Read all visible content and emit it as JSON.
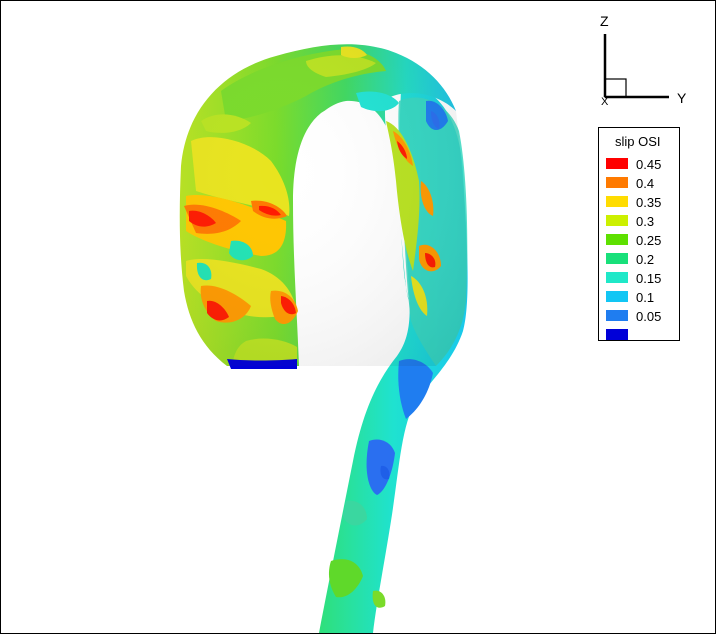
{
  "axes": {
    "z_label": "Z",
    "y_label": "Y",
    "x_label": "X"
  },
  "legend": {
    "title": "slip OSI",
    "items": [
      {
        "value": "0.45",
        "color": "#ff0000"
      },
      {
        "value": "0.4",
        "color": "#ff7a00"
      },
      {
        "value": "0.35",
        "color": "#ffdc00"
      },
      {
        "value": "0.3",
        "color": "#ccf000"
      },
      {
        "value": "0.25",
        "color": "#5ee000"
      },
      {
        "value": "0.2",
        "color": "#18e07a"
      },
      {
        "value": "0.15",
        "color": "#1fe8c8"
      },
      {
        "value": "0.1",
        "color": "#12c6f4"
      },
      {
        "value": "0.05",
        "color": "#1f7df0"
      },
      {
        "value": "",
        "color": "#0000d8"
      }
    ]
  },
  "colors": {
    "mesh_green": "#5fd92a",
    "mesh_cyan": "#21e3d4",
    "mesh_blue": "#2a7ff0",
    "mesh_yellow": "#e9e81e",
    "mesh_orange": "#ff9a00",
    "mesh_red": "#ff1a00"
  }
}
